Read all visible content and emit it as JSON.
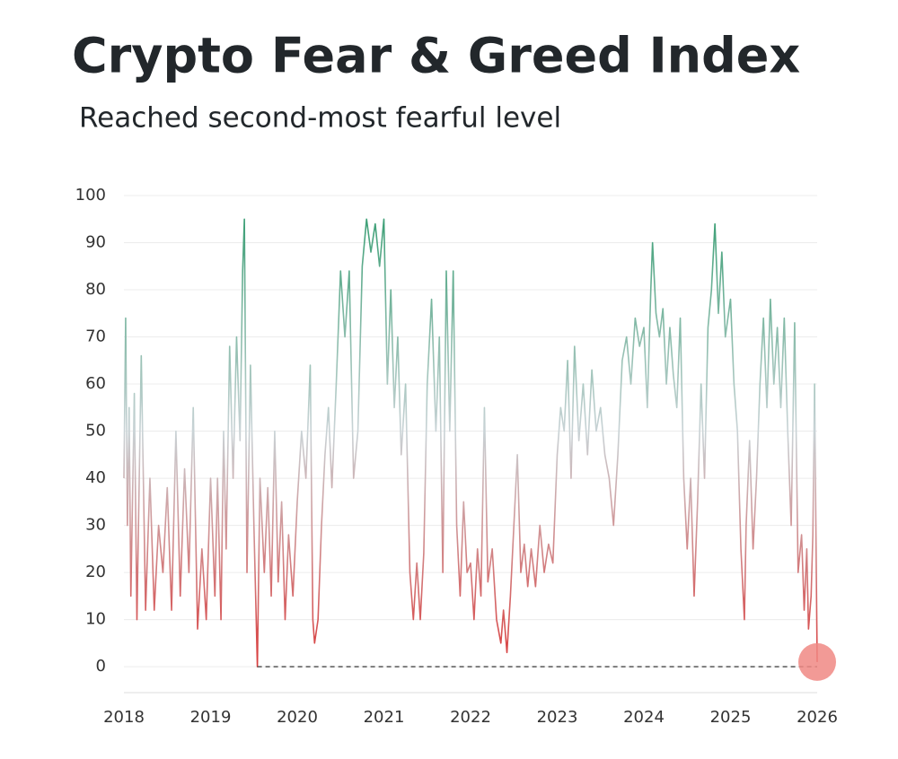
{
  "chart_data": {
    "type": "line",
    "title": "Crypto Fear & Greed Index",
    "subtitle": "Reached second-most fearful level",
    "x": [
      2018.0,
      2018.02,
      2018.04,
      2018.06,
      2018.08,
      2018.12,
      2018.15,
      2018.2,
      2018.25,
      2018.3,
      2018.35,
      2018.4,
      2018.45,
      2018.5,
      2018.55,
      2018.6,
      2018.65,
      2018.7,
      2018.75,
      2018.8,
      2018.85,
      2018.9,
      2018.95,
      2019.0,
      2019.05,
      2019.08,
      2019.12,
      2019.15,
      2019.18,
      2019.22,
      2019.26,
      2019.3,
      2019.34,
      2019.37,
      2019.39,
      2019.42,
      2019.46,
      2019.5,
      2019.54,
      2019.57,
      2019.62,
      2019.66,
      2019.7,
      2019.74,
      2019.78,
      2019.82,
      2019.86,
      2019.9,
      2019.95,
      2020.0,
      2020.05,
      2020.1,
      2020.15,
      2020.18,
      2020.2,
      2020.24,
      2020.28,
      2020.32,
      2020.36,
      2020.4,
      2020.45,
      2020.5,
      2020.55,
      2020.6,
      2020.65,
      2020.7,
      2020.75,
      2020.8,
      2020.85,
      2020.9,
      2020.95,
      2021.0,
      2021.04,
      2021.08,
      2021.12,
      2021.16,
      2021.2,
      2021.25,
      2021.3,
      2021.34,
      2021.38,
      2021.42,
      2021.46,
      2021.5,
      2021.55,
      2021.6,
      2021.64,
      2021.68,
      2021.72,
      2021.76,
      2021.8,
      2021.84,
      2021.88,
      2021.92,
      2021.96,
      2022.0,
      2022.04,
      2022.08,
      2022.12,
      2022.16,
      2022.2,
      2022.25,
      2022.3,
      2022.35,
      2022.38,
      2022.42,
      2022.46,
      2022.5,
      2022.54,
      2022.58,
      2022.62,
      2022.66,
      2022.7,
      2022.75,
      2022.8,
      2022.85,
      2022.9,
      2022.95,
      2023.0,
      2023.04,
      2023.08,
      2023.12,
      2023.16,
      2023.2,
      2023.25,
      2023.3,
      2023.35,
      2023.4,
      2023.45,
      2023.5,
      2023.55,
      2023.6,
      2023.65,
      2023.7,
      2023.75,
      2023.8,
      2023.85,
      2023.9,
      2023.95,
      2024.0,
      2024.04,
      2024.08,
      2024.1,
      2024.14,
      2024.18,
      2024.22,
      2024.26,
      2024.3,
      2024.34,
      2024.38,
      2024.42,
      2024.46,
      2024.5,
      2024.54,
      2024.58,
      2024.62,
      2024.66,
      2024.7,
      2024.74,
      2024.78,
      2024.82,
      2024.86,
      2024.9,
      2024.94,
      2025.0,
      2025.04,
      2025.08,
      2025.12,
      2025.16,
      2025.18,
      2025.22,
      2025.26,
      2025.3,
      2025.34,
      2025.38,
      2025.42,
      2025.46,
      2025.5,
      2025.54,
      2025.58,
      2025.62,
      2025.66,
      2025.7,
      2025.74,
      2025.78,
      2025.82,
      2025.85,
      2025.88,
      2025.9,
      2025.93,
      2025.95,
      2025.97,
      2025.99,
      2026.0
    ],
    "series": [
      {
        "values": [
          40,
          74,
          30,
          55,
          15,
          58,
          10,
          66,
          12,
          40,
          12,
          30,
          20,
          38,
          12,
          50,
          15,
          42,
          20,
          55,
          8,
          25,
          10,
          40,
          15,
          40,
          10,
          50,
          25,
          68,
          40,
          70,
          48,
          84,
          95,
          20,
          64,
          30,
          0,
          40,
          20,
          38,
          15,
          50,
          18,
          35,
          10,
          28,
          15,
          35,
          50,
          40,
          64,
          10,
          5,
          10,
          30,
          45,
          55,
          38,
          60,
          84,
          70,
          84,
          40,
          50,
          85,
          95,
          88,
          94,
          85,
          95,
          60,
          80,
          55,
          70,
          45,
          60,
          20,
          10,
          22,
          10,
          24,
          60,
          78,
          50,
          70,
          20,
          84,
          50,
          84,
          30,
          15,
          35,
          20,
          22,
          10,
          25,
          15,
          55,
          18,
          25,
          10,
          5,
          12,
          3,
          15,
          30,
          45,
          20,
          26,
          17,
          25,
          17,
          30,
          20,
          26,
          22,
          45,
          55,
          50,
          65,
          40,
          68,
          48,
          60,
          45,
          63,
          50,
          55,
          45,
          40,
          30,
          45,
          65,
          70,
          60,
          74,
          68,
          72,
          55,
          80,
          90,
          75,
          70,
          76,
          60,
          72,
          62,
          55,
          74,
          40,
          25,
          40,
          15,
          35,
          60,
          40,
          72,
          80,
          94,
          75,
          88,
          70,
          78,
          60,
          50,
          25,
          10,
          30,
          48,
          25,
          40,
          60,
          74,
          55,
          78,
          60,
          72,
          55,
          74,
          50,
          30,
          73,
          20,
          28,
          12,
          25,
          8,
          15,
          28,
          60,
          20,
          1
        ]
      }
    ],
    "gradient": [
      {
        "value": 0,
        "color": "#d93b3b"
      },
      {
        "value": 50,
        "color": "#c9d3d6"
      },
      {
        "value": 100,
        "color": "#2e9a6c"
      }
    ],
    "reference_line": {
      "value": 0,
      "x_start": 2019.54,
      "x_end": 2026.0,
      "color": "#555555"
    },
    "highlight_color": "#f08884",
    "xlim": [
      2018,
      2026
    ],
    "xticks": [
      2018,
      2019,
      2020,
      2021,
      2022,
      2023,
      2024,
      2025,
      2026
    ],
    "ylim": [
      -5.5,
      100
    ],
    "yticks": [
      0,
      10,
      20,
      30,
      40,
      50,
      60,
      70,
      80,
      90,
      100
    ],
    "grid": true
  }
}
